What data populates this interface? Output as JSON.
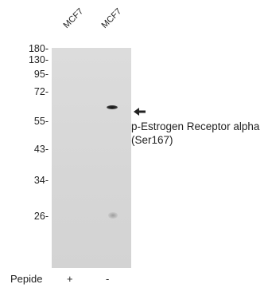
{
  "lanes": [
    "MCF7",
    "MCF7"
  ],
  "markers": [
    "180-",
    "130-",
    "95-",
    "72-",
    "55-",
    "43-",
    "34-",
    "26-"
  ],
  "target": {
    "line1": "p-Estrogen Receptor alpha",
    "line2": "(Ser167)"
  },
  "peptide": {
    "label": "Pepide",
    "values": [
      "+",
      "-"
    ]
  },
  "icons": {
    "arrow": "left-arrow-icon"
  }
}
